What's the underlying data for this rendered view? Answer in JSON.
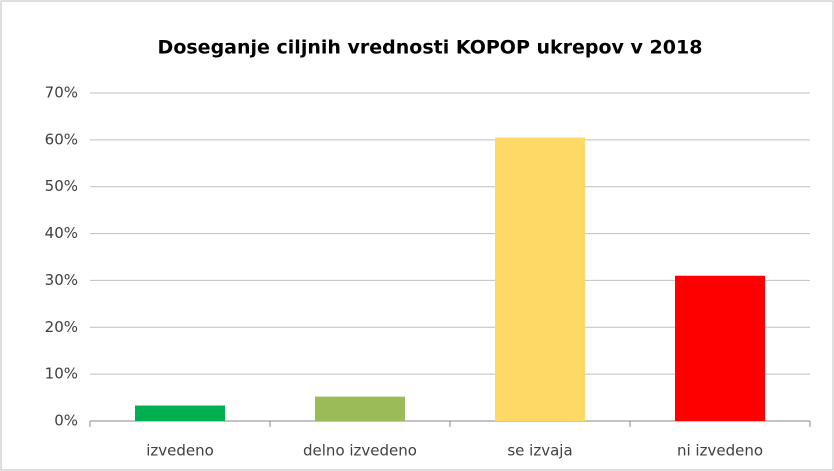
{
  "chart_data": {
    "type": "bar",
    "title": "Doseganje ciljnih vrednosti KOPOP ukrepov v 2018",
    "categories": [
      "izvedeno",
      "delno izvedeno",
      "se izvaja",
      "ni izvedeno"
    ],
    "values": [
      3.3,
      5.2,
      60.5,
      31
    ],
    "colors": [
      "#00b050",
      "#9bbb59",
      "#ffd966",
      "#ff0000"
    ],
    "ylim": [
      0,
      70
    ],
    "yticks": [
      {
        "value": 0,
        "label": "0%"
      },
      {
        "value": 10,
        "label": "10%"
      },
      {
        "value": 20,
        "label": "20%"
      },
      {
        "value": 30,
        "label": "30%"
      },
      {
        "value": 40,
        "label": "40%"
      },
      {
        "value": 50,
        "label": "50%"
      },
      {
        "value": 60,
        "label": "60%"
      },
      {
        "value": 70,
        "label": "70%"
      }
    ],
    "grid": true
  }
}
